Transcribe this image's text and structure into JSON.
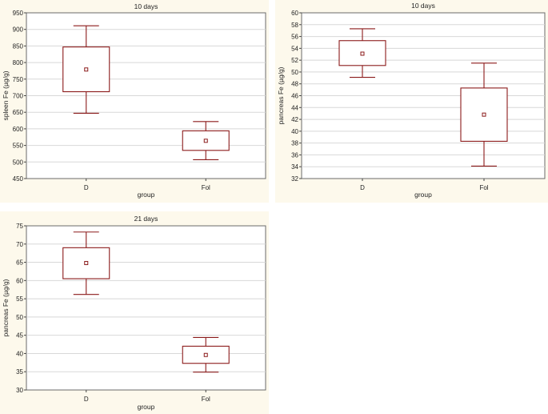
{
  "chart_data": [
    {
      "type": "box",
      "title": "10 days",
      "xlabel": "group",
      "ylabel": "spleen Fe (µg/g)",
      "ylim": [
        450,
        950
      ],
      "yticks": [
        450,
        500,
        550,
        600,
        650,
        700,
        750,
        800,
        850,
        900,
        950
      ],
      "categories": [
        "D",
        "Fol"
      ],
      "boxes": [
        {
          "category": "D",
          "whisker_low": 647,
          "box_low": 712,
          "median": 779,
          "box_high": 847,
          "whisker_high": 911
        },
        {
          "category": "Fol",
          "whisker_low": 507,
          "box_low": 535,
          "median": 564,
          "box_high": 594,
          "whisker_high": 622
        }
      ]
    },
    {
      "type": "box",
      "title": "10 days",
      "xlabel": "group",
      "ylabel": "pancreas Fe (µg/g)",
      "ylim": [
        32,
        60
      ],
      "yticks": [
        32,
        34,
        36,
        38,
        40,
        42,
        44,
        46,
        48,
        50,
        52,
        54,
        56,
        58,
        60
      ],
      "categories": [
        "D",
        "Fol"
      ],
      "boxes": [
        {
          "category": "D",
          "whisker_low": 49.1,
          "box_low": 51.1,
          "median": 53.1,
          "box_high": 55.3,
          "whisker_high": 57.3
        },
        {
          "category": "Fol",
          "whisker_low": 34.1,
          "box_low": 38.3,
          "median": 42.8,
          "box_high": 47.3,
          "whisker_high": 51.5
        }
      ]
    },
    {
      "type": "box",
      "title": "21 days",
      "xlabel": "group",
      "ylabel": "pancreas Fe (µg/g)",
      "ylim": [
        30,
        75
      ],
      "yticks": [
        30,
        35,
        40,
        45,
        50,
        55,
        60,
        65,
        70,
        75
      ],
      "categories": [
        "D",
        "Fol"
      ],
      "boxes": [
        {
          "category": "D",
          "whisker_low": 56.2,
          "box_low": 60.5,
          "median": 64.8,
          "box_high": 69.0,
          "whisker_high": 73.3
        },
        {
          "category": "Fol",
          "whisker_low": 34.9,
          "box_low": 37.3,
          "median": 39.6,
          "box_high": 42.0,
          "whisker_high": 44.4
        }
      ]
    }
  ]
}
